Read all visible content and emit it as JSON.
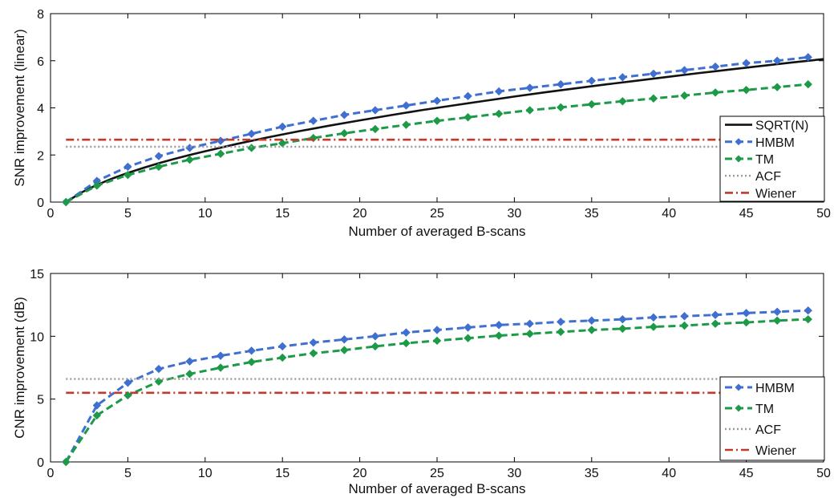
{
  "colors": {
    "sqrt": "#111111",
    "hmbm": "#3f6fd0",
    "tm": "#1c9a48",
    "acf": "#9a9a9a",
    "wiener": "#c0392b"
  },
  "chart_data": [
    {
      "type": "line",
      "xlabel": "Number of averaged B-scans",
      "ylabel": "SNR improvement (linear)",
      "xlim": [
        0,
        50
      ],
      "ylim": [
        0,
        8
      ],
      "xticks": [
        0,
        5,
        10,
        15,
        20,
        25,
        30,
        35,
        40,
        45,
        50
      ],
      "yticks": [
        0,
        2,
        4,
        6,
        8
      ],
      "legend_position": "right",
      "grid": false,
      "series": [
        {
          "name": "SQRT(N)",
          "style": "solid",
          "marker": "none",
          "color": "#111111",
          "x": [
            1,
            2,
            3,
            4,
            5,
            6,
            7,
            8,
            9,
            10,
            12,
            14,
            16,
            18,
            20,
            22,
            24,
            26,
            28,
            30,
            32,
            34,
            36,
            38,
            40,
            42,
            44,
            46,
            48,
            50
          ],
          "values": [
            0,
            0.41,
            0.73,
            1.0,
            1.24,
            1.45,
            1.65,
            1.83,
            2.0,
            2.16,
            2.46,
            2.74,
            3.0,
            3.24,
            3.47,
            3.69,
            3.9,
            4.1,
            4.29,
            4.48,
            4.66,
            4.83,
            5.0,
            5.16,
            5.32,
            5.48,
            5.63,
            5.78,
            5.93,
            6.07
          ]
        },
        {
          "name": "HMBM",
          "style": "dashed",
          "marker": "diamond",
          "color": "#3f6fd0",
          "x": [
            1,
            3,
            5,
            7,
            9,
            11,
            13,
            15,
            17,
            19,
            21,
            23,
            25,
            27,
            29,
            31,
            33,
            35,
            37,
            39,
            41,
            43,
            45,
            47,
            49
          ],
          "values": [
            0,
            0.9,
            1.5,
            1.95,
            2.3,
            2.6,
            2.9,
            3.2,
            3.45,
            3.7,
            3.9,
            4.1,
            4.3,
            4.5,
            4.7,
            4.85,
            5.0,
            5.15,
            5.3,
            5.45,
            5.6,
            5.75,
            5.9,
            6.0,
            6.15
          ]
        },
        {
          "name": "TM",
          "style": "dashed",
          "marker": "diamond",
          "color": "#1c9a48",
          "x": [
            1,
            3,
            5,
            7,
            9,
            11,
            13,
            15,
            17,
            19,
            21,
            23,
            25,
            27,
            29,
            31,
            33,
            35,
            37,
            39,
            41,
            43,
            45,
            47,
            49
          ],
          "values": [
            0,
            0.7,
            1.15,
            1.5,
            1.8,
            2.05,
            2.3,
            2.5,
            2.72,
            2.92,
            3.1,
            3.28,
            3.45,
            3.6,
            3.75,
            3.9,
            4.02,
            4.15,
            4.28,
            4.4,
            4.52,
            4.65,
            4.76,
            4.88,
            5.0
          ]
        },
        {
          "name": "ACF",
          "style": "dotted",
          "marker": "none",
          "color": "#9a9a9a",
          "x": [
            1,
            49
          ],
          "values": [
            2.35,
            2.35
          ]
        },
        {
          "name": "Wiener",
          "style": "dashdot",
          "marker": "none",
          "color": "#c0392b",
          "x": [
            1,
            49
          ],
          "values": [
            2.65,
            2.65
          ]
        }
      ]
    },
    {
      "type": "line",
      "xlabel": "Number of averaged B-scans",
      "ylabel": "CNR improvement (dB)",
      "xlim": [
        0,
        50
      ],
      "ylim": [
        0,
        15
      ],
      "xticks": [
        0,
        5,
        10,
        15,
        20,
        25,
        30,
        35,
        40,
        45,
        50
      ],
      "yticks": [
        0,
        5,
        10,
        15
      ],
      "legend_position": "right",
      "grid": false,
      "series": [
        {
          "name": "HMBM",
          "style": "dashed",
          "marker": "diamond",
          "color": "#3f6fd0",
          "x": [
            1,
            3,
            5,
            7,
            9,
            11,
            13,
            15,
            17,
            19,
            21,
            23,
            25,
            27,
            29,
            31,
            33,
            35,
            37,
            39,
            41,
            43,
            45,
            47,
            49
          ],
          "values": [
            0,
            4.5,
            6.3,
            7.4,
            8.0,
            8.45,
            8.85,
            9.2,
            9.5,
            9.75,
            10.0,
            10.3,
            10.5,
            10.7,
            10.9,
            11.0,
            11.15,
            11.25,
            11.35,
            11.5,
            11.6,
            11.7,
            11.85,
            11.95,
            12.05
          ]
        },
        {
          "name": "TM",
          "style": "dashed",
          "marker": "diamond",
          "color": "#1c9a48",
          "x": [
            1,
            3,
            5,
            7,
            9,
            11,
            13,
            15,
            17,
            19,
            21,
            23,
            25,
            27,
            29,
            31,
            33,
            35,
            37,
            39,
            41,
            43,
            45,
            47,
            49
          ],
          "values": [
            0,
            3.7,
            5.3,
            6.4,
            7.0,
            7.5,
            7.95,
            8.3,
            8.65,
            8.9,
            9.2,
            9.45,
            9.65,
            9.85,
            10.05,
            10.2,
            10.35,
            10.5,
            10.6,
            10.75,
            10.85,
            11.0,
            11.1,
            11.25,
            11.35
          ]
        },
        {
          "name": "ACF",
          "style": "dotted",
          "marker": "none",
          "color": "#9a9a9a",
          "x": [
            1,
            49
          ],
          "values": [
            6.6,
            6.6
          ]
        },
        {
          "name": "Wiener",
          "style": "dashdot",
          "marker": "none",
          "color": "#c0392b",
          "x": [
            1,
            49
          ],
          "values": [
            5.5,
            5.5
          ]
        }
      ]
    }
  ]
}
